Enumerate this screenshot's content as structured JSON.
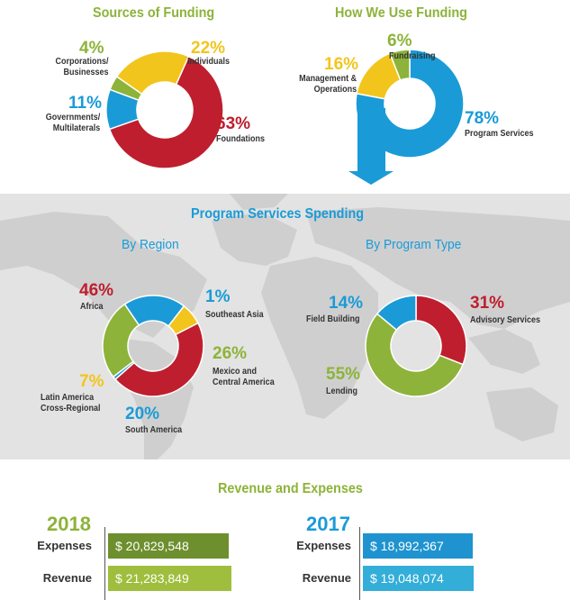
{
  "colors": {
    "red": "#bf1e2e",
    "yellow": "#f2c51d",
    "green": "#8db33a",
    "blue": "#1a9bd7",
    "darkgreen": "#6d8f2e",
    "olive": "#9fbe3d",
    "darkblue": "#1f93cf",
    "lightblue": "#33aed8"
  },
  "funding": {
    "title": "Sources of Funding"
  },
  "use": {
    "title": "How We Use Funding"
  },
  "program": {
    "title": "Program Services Spending",
    "region_title": "By Region",
    "type_title": "By Program Type"
  },
  "revexp": {
    "title": "Revenue and Expenses"
  },
  "chart_data": [
    {
      "type": "pie",
      "title": "Sources of Funding",
      "slices": [
        {
          "pct": "63%",
          "value": 63,
          "label": [
            "Foundations"
          ],
          "color": "#bf1e2e"
        },
        {
          "pct": "11%",
          "value": 11,
          "label": [
            "Governments/",
            "Multilaterals"
          ],
          "color": "#1a9bd7"
        },
        {
          "pct": "4%",
          "value": 4,
          "label": [
            "Corporations/",
            "Businesses"
          ],
          "color": "#8db33a"
        },
        {
          "pct": "22%",
          "value": 22,
          "label": [
            "Individuals"
          ],
          "color": "#f2c51d"
        }
      ]
    },
    {
      "type": "pie",
      "title": "How We Use Funding",
      "slices": [
        {
          "pct": "78%",
          "value": 78,
          "label": [
            "Program Services"
          ],
          "color": "#1a9bd7"
        },
        {
          "pct": "16%",
          "value": 16,
          "label": [
            "Management &",
            "Operations"
          ],
          "color": "#f2c51d"
        },
        {
          "pct": "6%",
          "value": 6,
          "label": [
            "Fundraising"
          ],
          "color": "#8db33a"
        }
      ]
    },
    {
      "type": "pie",
      "title": "By Region",
      "slices": [
        {
          "pct": "46%",
          "value": 46,
          "label": [
            "Africa"
          ],
          "color": "#bf1e2e"
        },
        {
          "pct": "1%",
          "value": 1,
          "label": [
            "Southeast Asia"
          ],
          "color": "#1a9bd7"
        },
        {
          "pct": "26%",
          "value": 26,
          "label": [
            "Mexico and",
            "Central America"
          ],
          "color": "#8db33a"
        },
        {
          "pct": "20%",
          "value": 20,
          "label": [
            "South America"
          ],
          "color": "#1a9bd7"
        },
        {
          "pct": "7%",
          "value": 7,
          "label": [
            "Latin America",
            "Cross-Regional"
          ],
          "color": "#f2c51d"
        }
      ]
    },
    {
      "type": "pie",
      "title": "By Program Type",
      "slices": [
        {
          "pct": "31%",
          "value": 31,
          "label": [
            "Advisory Services"
          ],
          "color": "#bf1e2e"
        },
        {
          "pct": "55%",
          "value": 55,
          "label": [
            "Lending"
          ],
          "color": "#8db33a"
        },
        {
          "pct": "14%",
          "value": 14,
          "label": [
            "Field Building"
          ],
          "color": "#1a9bd7"
        }
      ]
    },
    {
      "type": "bar",
      "title": "Revenue and Expenses",
      "groups": [
        {
          "year": "2018",
          "rows": [
            {
              "label": "Expenses",
              "value": 20829548,
              "text": "$ 20,829,548"
            },
            {
              "label": "Revenue",
              "value": 21283849,
              "text": "$ 21,283,849"
            }
          ]
        },
        {
          "year": "2017",
          "rows": [
            {
              "label": "Expenses",
              "value": 18992367,
              "text": "$ 18,992,367"
            },
            {
              "label": "Revenue",
              "value": 19048074,
              "text": "$ 19,048,074"
            }
          ]
        }
      ]
    }
  ]
}
